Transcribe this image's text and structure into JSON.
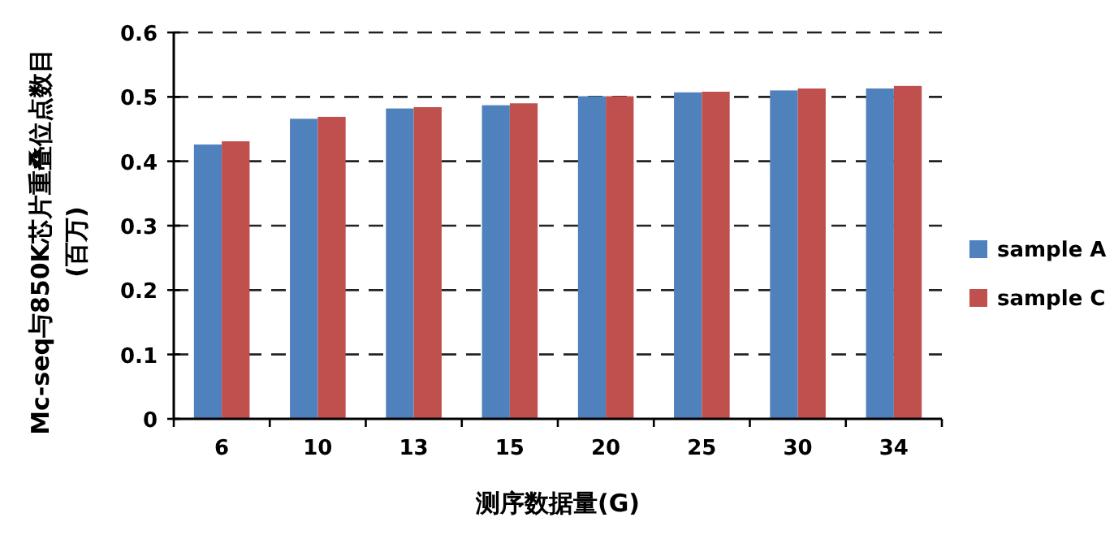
{
  "chart_data": {
    "type": "bar",
    "xlabel": "测序数据量(G)",
    "ylabel": "Mc-seq与850K芯片重叠位点数目\n(百万)",
    "categories": [
      "6",
      "10",
      "13",
      "15",
      "20",
      "25",
      "30",
      "34"
    ],
    "series": [
      {
        "name": "sample A",
        "color": "#4f81bd",
        "values": [
          0.426,
          0.466,
          0.482,
          0.487,
          0.501,
          0.507,
          0.51,
          0.513
        ]
      },
      {
        "name": "sample C",
        "color": "#c0504d",
        "values": [
          0.431,
          0.469,
          0.484,
          0.49,
          0.501,
          0.508,
          0.513,
          0.517
        ]
      }
    ],
    "ylim": [
      0,
      0.6
    ],
    "yticks": [
      0,
      0.1,
      0.2,
      0.3,
      0.4,
      0.5,
      0.6
    ],
    "grid": "y",
    "legend": "right"
  }
}
